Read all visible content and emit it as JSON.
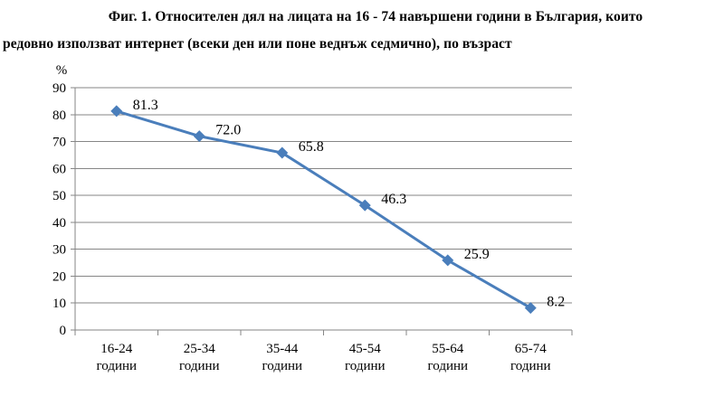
{
  "title": {
    "line1": "Фиг. 1. Относителен дял на лицата на 16 - 74 навършени години в България, които",
    "line2": "редовно използват интернет (всеки ден или поне веднъж седмично), по възраст"
  },
  "chart_data": {
    "type": "line",
    "title": "Фиг. 1. Относителен дял на лицата на 16 - 74 навършени години в България, които редовно използват интернет (всеки ден или поне веднъж седмично), по възраст",
    "xlabel": "",
    "ylabel": "%",
    "categories": [
      [
        "16-24",
        "години"
      ],
      [
        "25-34",
        "години"
      ],
      [
        "35-44",
        "години"
      ],
      [
        "45-54",
        "години"
      ],
      [
        "55-64",
        "години"
      ],
      [
        "65-74",
        "години"
      ]
    ],
    "values": [
      81.3,
      72.0,
      65.8,
      46.3,
      25.9,
      8.2
    ],
    "data_labels": [
      "81.3",
      "72.0",
      "65.8",
      "46.3",
      "25.9",
      "8.2"
    ],
    "yticks": [
      0,
      10,
      20,
      30,
      40,
      50,
      60,
      70,
      80,
      90
    ],
    "ylim": [
      0,
      90
    ],
    "grid": true,
    "legend": "none",
    "marker": "diamond",
    "colors": {
      "line": "#4a7ebb",
      "marker": "#4a7ebb",
      "grid": "#868686",
      "axis": "#868686"
    }
  }
}
